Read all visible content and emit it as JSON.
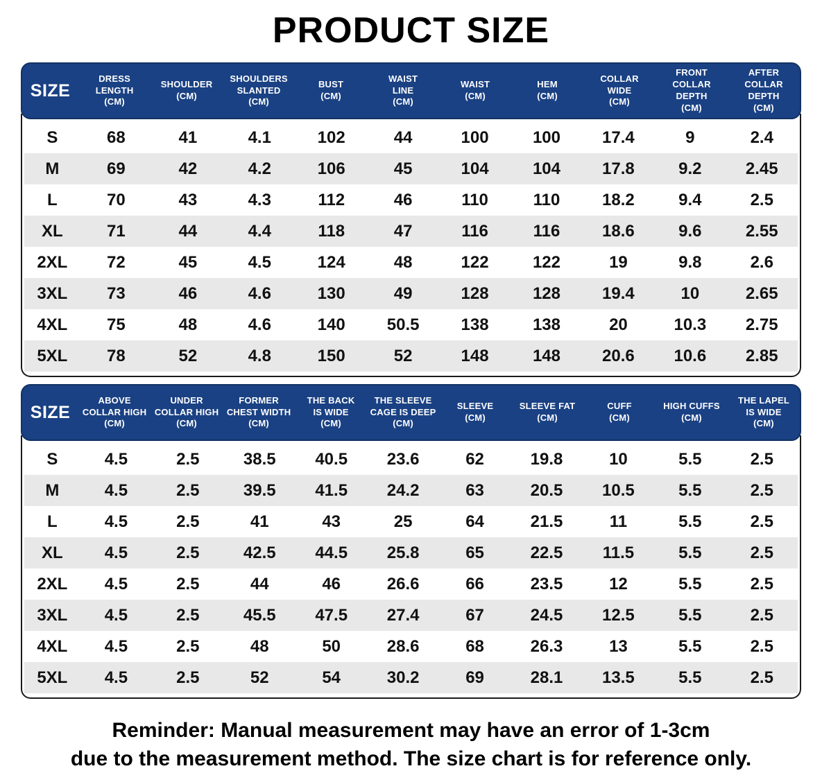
{
  "title": "PRODUCT SIZE",
  "colors": {
    "header_bg": "#1a4183",
    "header_text": "#ffffff",
    "row_alt_bg": "#e8e8e8",
    "table_border": "#1a1a1a",
    "text": "#000000"
  },
  "table1": {
    "columns": [
      [
        "SIZE"
      ],
      [
        "DRESS",
        "LENGTH",
        "(CM)"
      ],
      [
        "SHOULDER",
        "(CM)"
      ],
      [
        "SHOULDERS",
        "SLANTED",
        "(CM)"
      ],
      [
        "BUST",
        "(CM)"
      ],
      [
        "WAIST",
        "LINE",
        "(CM)"
      ],
      [
        "WAIST",
        "(CM)"
      ],
      [
        "HEM",
        "(CM)"
      ],
      [
        "COLLAR",
        "WIDE",
        "(CM)"
      ],
      [
        "FRONT",
        "COLLAR DEPTH",
        "(CM)"
      ],
      [
        "AFTER",
        "COLLAR DEPTH",
        "(CM)"
      ]
    ],
    "rows": [
      [
        "S",
        "68",
        "41",
        "4.1",
        "102",
        "44",
        "100",
        "100",
        "17.4",
        "9",
        "2.4"
      ],
      [
        "M",
        "69",
        "42",
        "4.2",
        "106",
        "45",
        "104",
        "104",
        "17.8",
        "9.2",
        "2.45"
      ],
      [
        "L",
        "70",
        "43",
        "4.3",
        "112",
        "46",
        "110",
        "110",
        "18.2",
        "9.4",
        "2.5"
      ],
      [
        "XL",
        "71",
        "44",
        "4.4",
        "118",
        "47",
        "116",
        "116",
        "18.6",
        "9.6",
        "2.55"
      ],
      [
        "2XL",
        "72",
        "45",
        "4.5",
        "124",
        "48",
        "122",
        "122",
        "19",
        "9.8",
        "2.6"
      ],
      [
        "3XL",
        "73",
        "46",
        "4.6",
        "130",
        "49",
        "128",
        "128",
        "19.4",
        "10",
        "2.65"
      ],
      [
        "4XL",
        "75",
        "48",
        "4.6",
        "140",
        "50.5",
        "138",
        "138",
        "20",
        "10.3",
        "2.75"
      ],
      [
        "5XL",
        "78",
        "52",
        "4.8",
        "150",
        "52",
        "148",
        "148",
        "20.6",
        "10.6",
        "2.85"
      ]
    ]
  },
  "table2": {
    "columns": [
      [
        "SIZE"
      ],
      [
        "ABOVE",
        "COLLAR HIGH",
        "(CM)"
      ],
      [
        "UNDER",
        "COLLAR HIGH",
        "(CM)"
      ],
      [
        "FORMER",
        "CHEST WIDTH",
        "(CM)"
      ],
      [
        "THE BACK",
        "IS WIDE",
        "(CM)"
      ],
      [
        "THE SLEEVE",
        "CAGE IS DEEP",
        "(CM)"
      ],
      [
        "SLEEVE",
        "(CM)"
      ],
      [
        "SLEEVE FAT",
        "(CM)"
      ],
      [
        "CUFF",
        "(CM)"
      ],
      [
        "HIGH CUFFS",
        "(CM)"
      ],
      [
        "THE LAPEL",
        "IS WIDE",
        "(CM)"
      ]
    ],
    "rows": [
      [
        "S",
        "4.5",
        "2.5",
        "38.5",
        "40.5",
        "23.6",
        "62",
        "19.8",
        "10",
        "5.5",
        "2.5"
      ],
      [
        "M",
        "4.5",
        "2.5",
        "39.5",
        "41.5",
        "24.2",
        "63",
        "20.5",
        "10.5",
        "5.5",
        "2.5"
      ],
      [
        "L",
        "4.5",
        "2.5",
        "41",
        "43",
        "25",
        "64",
        "21.5",
        "11",
        "5.5",
        "2.5"
      ],
      [
        "XL",
        "4.5",
        "2.5",
        "42.5",
        "44.5",
        "25.8",
        "65",
        "22.5",
        "11.5",
        "5.5",
        "2.5"
      ],
      [
        "2XL",
        "4.5",
        "2.5",
        "44",
        "46",
        "26.6",
        "66",
        "23.5",
        "12",
        "5.5",
        "2.5"
      ],
      [
        "3XL",
        "4.5",
        "2.5",
        "45.5",
        "47.5",
        "27.4",
        "67",
        "24.5",
        "12.5",
        "5.5",
        "2.5"
      ],
      [
        "4XL",
        "4.5",
        "2.5",
        "48",
        "50",
        "28.6",
        "68",
        "26.3",
        "13",
        "5.5",
        "2.5"
      ],
      [
        "5XL",
        "4.5",
        "2.5",
        "52",
        "54",
        "30.2",
        "69",
        "28.1",
        "13.5",
        "5.5",
        "2.5"
      ]
    ]
  },
  "footer": {
    "line1": "Reminder: Manual measurement may have an error of 1-3cm",
    "line2": "due to the measurement method. The size chart is for reference only."
  }
}
